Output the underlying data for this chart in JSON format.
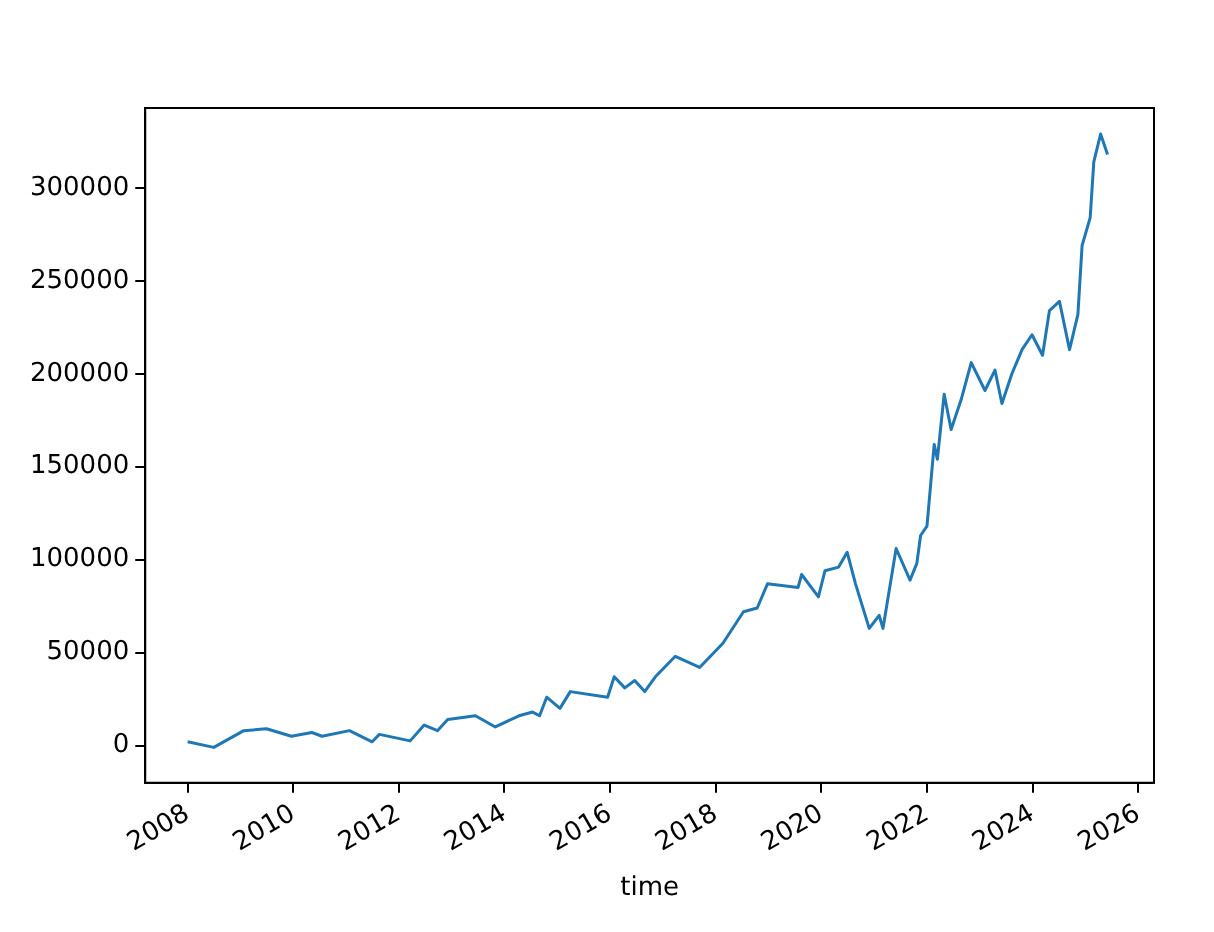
{
  "chart_data": {
    "type": "line",
    "xlabel": "time",
    "x": [
      "2008-01-02",
      "2008-07-01",
      "2009-01-25",
      "2009-07-01",
      "2009-12-20",
      "2010-05-10",
      "2010-07-20",
      "2011-01-25",
      "2011-07-01",
      "2011-08-20",
      "2012-03-20",
      "2012-06-25",
      "2012-09-25",
      "2012-12-05",
      "2013-06-15",
      "2013-10-30",
      "2014-04-12",
      "2014-07-15",
      "2014-09-01",
      "2014-10-20",
      "2015-01-20",
      "2015-04-01",
      "2015-12-15",
      "2016-01-30",
      "2016-04-12",
      "2016-06-20",
      "2016-08-28",
      "2016-11-10",
      "2017-03-28",
      "2017-09-12",
      "2018-02-20",
      "2018-07-12",
      "2018-10-15",
      "2018-12-25",
      "2019-07-24",
      "2019-08-18",
      "2019-12-12",
      "2020-01-26",
      "2020-04-30",
      "2020-06-28",
      "2020-08-25",
      "2020-11-28",
      "2021-02-05",
      "2021-03-03",
      "2021-06-02",
      "2021-09-06",
      "2021-10-23",
      "2021-11-18",
      "2022-01-01",
      "2022-02-20",
      "2022-03-14",
      "2022-04-30",
      "2022-06-17",
      "2022-08-25",
      "2022-11-03",
      "2023-02-06",
      "2023-04-16",
      "2023-06-03",
      "2023-08-11",
      "2023-10-20",
      "2023-12-28",
      "2024-03-10",
      "2024-04-27",
      "2024-07-05",
      "2024-09-13",
      "2024-11-10",
      "2024-12-09",
      "2025-02-03",
      "2025-02-28",
      "2025-04-16",
      "2025-06-03"
    ],
    "series": [
      {
        "color": "#1f77b4",
        "values": [
          2000,
          -1000,
          8000,
          9000,
          5000,
          7000,
          5000,
          8000,
          2000,
          6000,
          2500,
          11000,
          8000,
          14000,
          16000,
          10000,
          16000,
          18000,
          16000,
          26000,
          20000,
          29000,
          26000,
          37000,
          31000,
          35000,
          29000,
          37000,
          48000,
          42000,
          55000,
          72000,
          74000,
          87000,
          85000,
          92000,
          80000,
          94000,
          96000,
          104000,
          87000,
          63000,
          70000,
          63000,
          106000,
          89000,
          98000,
          113000,
          118000,
          162000,
          154000,
          189000,
          170000,
          186000,
          206000,
          191000,
          202000,
          184000,
          200000,
          213000,
          221000,
          210000,
          234000,
          239000,
          213000,
          232000,
          269000,
          284000,
          314000,
          329000,
          318000
        ]
      }
    ],
    "xlim": [
      "2007-03-15",
      "2026-04-20"
    ],
    "xticks": [
      "2008",
      "2010",
      "2012",
      "2014",
      "2016",
      "2018",
      "2020",
      "2022",
      "2024",
      "2026"
    ],
    "ylim": [
      -20000,
      343000
    ],
    "yticks": [
      0,
      50000,
      100000,
      150000,
      200000,
      250000,
      300000
    ],
    "grid": false,
    "legend": false,
    "marker": "none",
    "line_style": "solid"
  }
}
